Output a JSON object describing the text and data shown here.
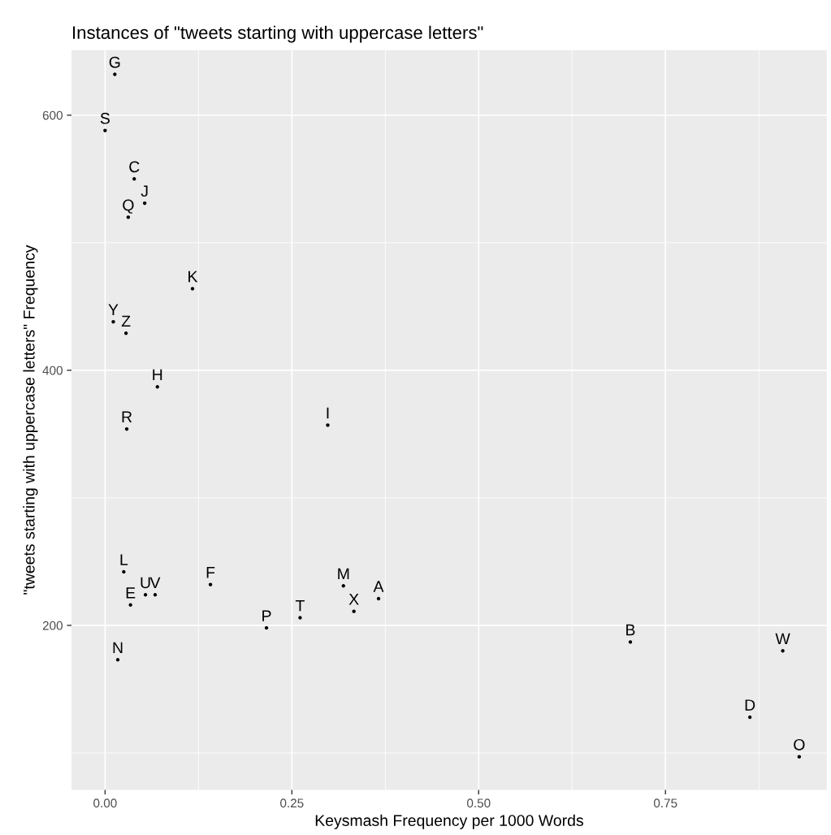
{
  "chart_data": {
    "type": "scatter",
    "title": "Instances of \"tweets starting with uppercase letters\"",
    "xlabel": "Keysmash Frequency per 1000 Words",
    "ylabel": "\"tweets starting with uppercase letters\" Frequency",
    "x": [
      0.013,
      0.0,
      0.039,
      0.053,
      0.031,
      0.117,
      0.011,
      0.028,
      0.07,
      0.029,
      0.298,
      0.025,
      0.141,
      0.054,
      0.067,
      0.034,
      0.319,
      0.366,
      0.333,
      0.261,
      0.216,
      0.017,
      0.703,
      0.907,
      0.863,
      0.929
    ],
    "series": [
      {
        "color": "#000000",
        "values": [
          632,
          588,
          550,
          531,
          520,
          464,
          438,
          429,
          387,
          354,
          357,
          242,
          232,
          224,
          224,
          216,
          231,
          221,
          211,
          206,
          198,
          173,
          187,
          180,
          128,
          97
        ],
        "value_labels": [
          "G",
          "S",
          "C",
          "J",
          "Q",
          "K",
          "Y",
          "Z",
          "H",
          "R",
          "I",
          "L",
          "F",
          "U",
          "V",
          "E",
          "M",
          "A",
          "X",
          "T",
          "P",
          "N",
          "B",
          "W",
          "D",
          "O"
        ]
      }
    ],
    "marker": "circle",
    "grid": true,
    "xlim": [
      -0.045,
      0.966
    ],
    "xticks": [
      {
        "value": 0,
        "label": "0.00"
      },
      {
        "value": 0.25,
        "label": "0.25"
      },
      {
        "value": 0.5,
        "label": "0.50"
      },
      {
        "value": 0.75,
        "label": "0.75"
      }
    ],
    "ylim": [
      71,
      651
    ],
    "yticks": [
      200,
      400,
      600
    ]
  }
}
